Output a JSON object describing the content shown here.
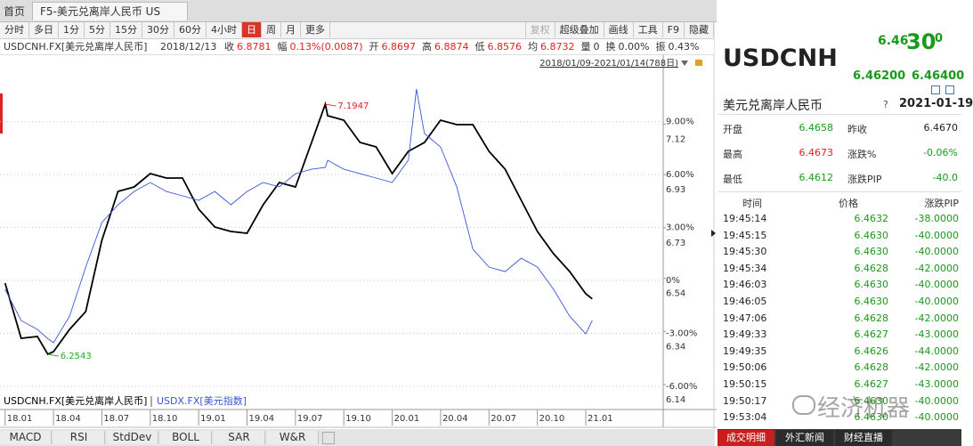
{
  "tabs": {
    "home": "首页",
    "active": "F5-美元兑离岸人民币 US"
  },
  "toolbar": {
    "periods": [
      "分时",
      "多日",
      "1分",
      "5分",
      "15分",
      "30分",
      "60分",
      "4小时",
      "日",
      "周",
      "月",
      "更多"
    ],
    "active": 8,
    "tools": [
      "复权",
      "超级叠加",
      "画线",
      "工具",
      "F9",
      "隐藏"
    ]
  },
  "info": {
    "symbol": "USDCNH.FX[美元兑离岸人民币]",
    "date": "2018/12/13",
    "fields": [
      {
        "label": "收",
        "value": "6.8781",
        "color": "#d22"
      },
      {
        "label": "幅",
        "value": "0.13%(0.0087)",
        "color": "#d22"
      },
      {
        "label": "开",
        "value": "6.8697",
        "color": "#d22"
      },
      {
        "label": "高",
        "value": "6.8874",
        "color": "#d22"
      },
      {
        "label": "低",
        "value": "6.8576",
        "color": "#d22"
      },
      {
        "label": "均",
        "value": "6.8732",
        "color": "#d22"
      },
      {
        "label": "量",
        "value": "0",
        "color": "#333"
      },
      {
        "label": "换",
        "value": "0.00%",
        "color": "#333"
      },
      {
        "label": "振",
        "value": "0.43%",
        "color": "#333"
      }
    ]
  },
  "range": "2018/01/09-2021/01/14(788日)",
  "chart_data": {
    "type": "line",
    "grid": true,
    "x": [
      0,
      1,
      2,
      2.65,
      3,
      4,
      5,
      6,
      7,
      8,
      9,
      10,
      11,
      12,
      13,
      14,
      15,
      16,
      17,
      18,
      19,
      19.85,
      20,
      21,
      22,
      23,
      24,
      25,
      25.5,
      26,
      27,
      28,
      29,
      30,
      31,
      32,
      33,
      34,
      35,
      36,
      36.4
    ],
    "xlim": [
      -0.15,
      40.8
    ],
    "xticks": [
      {
        "value": 0,
        "label": "18.01"
      },
      {
        "value": 3,
        "label": "18.04"
      },
      {
        "value": 6,
        "label": "18.07"
      },
      {
        "value": 9,
        "label": "18.10"
      },
      {
        "value": 12,
        "label": "19.01"
      },
      {
        "value": 15,
        "label": "19.04"
      },
      {
        "value": 18,
        "label": "19.07"
      },
      {
        "value": 21,
        "label": "19.10"
      },
      {
        "value": 24,
        "label": "20.01"
      },
      {
        "value": 27,
        "label": "20.04"
      },
      {
        "value": 30,
        "label": "20.07"
      },
      {
        "value": 33,
        "label": "20.10"
      },
      {
        "value": 36,
        "label": "21.01"
      }
    ],
    "ylim": [
      -7.31,
      12.76
    ],
    "yticks": [
      {
        "value": 9,
        "label": "9.00%"
      },
      {
        "value": 6,
        "label": "6.00%"
      },
      {
        "value": 3,
        "label": "3.00%"
      },
      {
        "value": 0,
        "label": "0%"
      },
      {
        "value": -3,
        "label": "-3.00%"
      },
      {
        "value": -6,
        "label": "-6.00%"
      }
    ],
    "y2lim": [
      6.0468,
      7.379
    ],
    "y2ticks": [
      7.12,
      6.93,
      6.73,
      6.54,
      6.34,
      6.14
    ],
    "series": [
      {
        "name": "USDCNH.FX[美元兑离岸人民币]",
        "color": "#000000",
        "axis": "y2",
        "values": [
          6.5221,
          6.3145,
          6.3212,
          6.2543,
          6.2643,
          6.348,
          6.415,
          6.6827,
          6.8668,
          6.8835,
          6.9337,
          6.917,
          6.917,
          6.7999,
          6.7329,
          6.7162,
          6.7095,
          6.8166,
          6.9003,
          6.8835,
          7.0509,
          7.1947,
          7.1513,
          7.1346,
          7.0509,
          7.0342,
          6.9337,
          7.0174,
          7.0342,
          7.0509,
          7.1346,
          7.1178,
          7.1178,
          7.0174,
          6.9505,
          6.8333,
          6.7162,
          6.6325,
          6.5656,
          6.4819,
          6.463
        ]
      },
      {
        "name": "USDX.FX[美元指数]",
        "color": "#3a55d8",
        "values": [
          -0.5,
          -2.27,
          -2.77,
          -3.3,
          -3.53,
          -2.02,
          0.76,
          3.28,
          4.29,
          5.04,
          5.55,
          5.04,
          4.79,
          4.54,
          5.04,
          4.29,
          5.04,
          5.55,
          5.3,
          6.05,
          6.3,
          6.4,
          6.81,
          6.3,
          6.05,
          5.8,
          5.55,
          6.81,
          10.84,
          8.32,
          7.56,
          5.3,
          1.77,
          0.76,
          0.5,
          1.26,
          0.76,
          -0.5,
          -2.02,
          -3.03,
          -2.27
        ]
      }
    ],
    "annotations": [
      {
        "series": 0,
        "index": 21,
        "color": "#d22"
      },
      {
        "series": 0,
        "index": 3,
        "color": "#2a2"
      }
    ]
  },
  "indicators": [
    "MACD",
    "RSI",
    "StdDev",
    "BOLL",
    "SAR",
    "W&R"
  ],
  "quote": {
    "symbol": "USDCNH",
    "price_main": "6.46",
    "price_big": "30",
    "price_small": "0",
    "bid": "6.46200",
    "ask": "6.46400",
    "name": "美元兑离岸人民币",
    "help": "?",
    "date": "2021-01-19",
    "stats": [
      [
        {
          "label": "开盘",
          "value": "6.4658",
          "color": "#1a9a1a"
        },
        {
          "label": "昨收",
          "value": "6.4670",
          "color": "#222"
        }
      ],
      [
        {
          "label": "最高",
          "value": "6.4673",
          "color": "#d22"
        },
        {
          "label": "涨跌%",
          "value": "-0.06%",
          "color": "#1a9a1a"
        }
      ],
      [
        {
          "label": "最低",
          "value": "6.4612",
          "color": "#1a9a1a"
        },
        {
          "label": "涨跌PIP",
          "value": "-40.0",
          "color": "#1a9a1a"
        }
      ]
    ],
    "ticks_header": [
      "时间",
      "价格",
      "涨跌PIP"
    ],
    "ticks": [
      [
        "19:45:14",
        "6.4632",
        "-38.0000"
      ],
      [
        "19:45:15",
        "6.4630",
        "-40.0000"
      ],
      [
        "19:45:30",
        "6.4630",
        "-40.0000"
      ],
      [
        "19:45:34",
        "6.4628",
        "-42.0000"
      ],
      [
        "19:46:03",
        "6.4630",
        "-40.0000"
      ],
      [
        "19:46:05",
        "6.4630",
        "-40.0000"
      ],
      [
        "19:47:06",
        "6.4628",
        "-42.0000"
      ],
      [
        "19:49:33",
        "6.4627",
        "-43.0000"
      ],
      [
        "19:49:35",
        "6.4626",
        "-44.0000"
      ],
      [
        "19:50:06",
        "6.4628",
        "-42.0000"
      ],
      [
        "19:50:15",
        "6.4627",
        "-43.0000"
      ],
      [
        "19:50:17",
        "6.4630",
        "-40.0000"
      ],
      [
        "19:53:04",
        "6.4630",
        "-40.0000"
      ]
    ],
    "tabs": [
      "成交明细",
      "外汇新闻",
      "财经直播"
    ],
    "active_tab": 0
  },
  "watermark": "经济机器"
}
